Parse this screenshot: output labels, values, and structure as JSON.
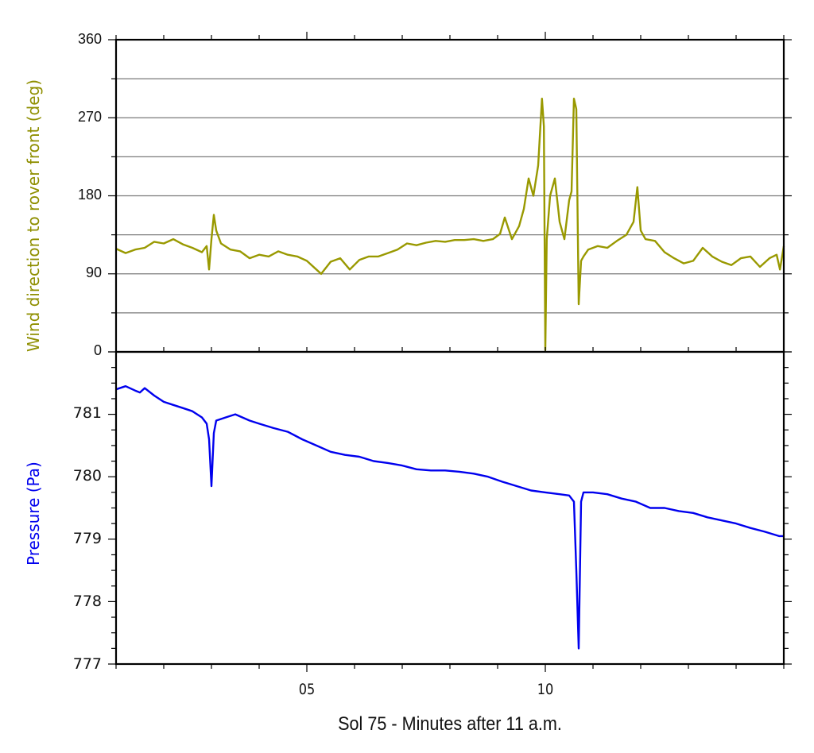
{
  "chart_data": [
    {
      "type": "line",
      "panel": "top",
      "title": "",
      "xlabel": "Sol 75 - Minutes after 11 a.m.",
      "ylabel": "Wind direction to rover front (deg)",
      "ylabel_color": "#8f8f00",
      "line_color": "#999900",
      "xlim": [
        1,
        15
      ],
      "ylim": [
        0,
        360
      ],
      "yticks": [
        0,
        90,
        180,
        270,
        360
      ],
      "ytick_labels": [
        "0",
        "90",
        "180",
        "270",
        "360"
      ],
      "gridlines_y": [
        45,
        90,
        135,
        180,
        225,
        270,
        315
      ],
      "grid": true,
      "series": [
        {
          "name": "Wind direction",
          "x": [
            1.0,
            1.2,
            1.4,
            1.6,
            1.8,
            2.0,
            2.2,
            2.4,
            2.6,
            2.8,
            2.9,
            2.95,
            3.0,
            3.05,
            3.1,
            3.2,
            3.4,
            3.6,
            3.8,
            4.0,
            4.2,
            4.4,
            4.6,
            4.8,
            5.0,
            5.2,
            5.3,
            5.5,
            5.7,
            5.9,
            6.1,
            6.3,
            6.5,
            6.7,
            6.9,
            7.1,
            7.3,
            7.5,
            7.7,
            7.9,
            8.1,
            8.3,
            8.5,
            8.7,
            8.9,
            9.05,
            9.15,
            9.3,
            9.45,
            9.55,
            9.65,
            9.75,
            9.85,
            9.93,
            9.97,
            10.0,
            10.03,
            10.1,
            10.2,
            10.3,
            10.4,
            10.5,
            10.55,
            10.6,
            10.65,
            10.7,
            10.75,
            10.8,
            10.9,
            11.1,
            11.3,
            11.5,
            11.7,
            11.85,
            11.93,
            12.0,
            12.1,
            12.3,
            12.5,
            12.7,
            12.9,
            13.1,
            13.3,
            13.5,
            13.7,
            13.9,
            14.1,
            14.3,
            14.5,
            14.7,
            14.85,
            14.92,
            15.0
          ],
          "values": [
            119,
            114,
            118,
            120,
            127,
            125,
            130,
            124,
            120,
            115,
            122,
            95,
            130,
            158,
            140,
            125,
            118,
            116,
            108,
            112,
            110,
            116,
            112,
            110,
            105,
            95,
            90,
            104,
            108,
            95,
            106,
            110,
            110,
            114,
            118,
            125,
            123,
            126,
            128,
            127,
            129,
            129,
            130,
            128,
            130,
            136,
            155,
            130,
            145,
            165,
            200,
            180,
            215,
            292,
            260,
            2,
            130,
            180,
            200,
            150,
            130,
            175,
            185,
            292,
            280,
            55,
            105,
            110,
            118,
            122,
            120,
            128,
            135,
            150,
            190,
            140,
            130,
            128,
            115,
            108,
            102,
            105,
            120,
            110,
            104,
            100,
            108,
            110,
            98,
            108,
            112,
            95,
            122
          ]
        }
      ]
    },
    {
      "type": "line",
      "panel": "bottom",
      "title": "",
      "xlabel": "Sol 75 - Minutes after 11 a.m.",
      "ylabel": "Pressure (Pa)",
      "ylabel_color": "#0000ee",
      "line_color": "#0000ee",
      "xlim": [
        1,
        15
      ],
      "ylim": [
        777,
        782
      ],
      "yticks": [
        777,
        778,
        779,
        780,
        781
      ],
      "ytick_labels": [
        "777",
        "778",
        "779",
        "780",
        "781"
      ],
      "yminor_step": 0.25,
      "grid": false,
      "series": [
        {
          "name": "Pressure",
          "x": [
            1.0,
            1.2,
            1.4,
            1.5,
            1.6,
            1.8,
            2.0,
            2.2,
            2.4,
            2.6,
            2.8,
            2.9,
            2.95,
            3.0,
            3.05,
            3.1,
            3.3,
            3.5,
            3.8,
            4.0,
            4.3,
            4.6,
            4.9,
            5.2,
            5.5,
            5.8,
            6.1,
            6.4,
            6.7,
            7.0,
            7.3,
            7.6,
            7.9,
            8.2,
            8.5,
            8.8,
            9.1,
            9.4,
            9.7,
            10.0,
            10.3,
            10.5,
            10.6,
            10.65,
            10.7,
            10.75,
            10.8,
            11.0,
            11.3,
            11.6,
            11.9,
            12.2,
            12.5,
            12.8,
            13.1,
            13.4,
            13.7,
            14.0,
            14.3,
            14.6,
            14.9,
            15.0
          ],
          "values": [
            781.4,
            781.45,
            781.38,
            781.35,
            781.42,
            781.3,
            781.2,
            781.15,
            781.1,
            781.05,
            780.95,
            780.85,
            780.6,
            779.85,
            780.7,
            780.9,
            780.95,
            781.0,
            780.9,
            780.85,
            780.78,
            780.72,
            780.6,
            780.5,
            780.4,
            780.35,
            780.32,
            780.25,
            780.22,
            780.18,
            780.12,
            780.1,
            780.1,
            780.08,
            780.05,
            780.0,
            779.92,
            779.85,
            779.78,
            779.75,
            779.72,
            779.7,
            779.6,
            778.5,
            777.25,
            779.6,
            779.75,
            779.75,
            779.72,
            779.65,
            779.6,
            779.5,
            779.5,
            779.45,
            779.42,
            779.35,
            779.3,
            779.25,
            779.18,
            779.12,
            779.05,
            779.05
          ]
        }
      ]
    }
  ],
  "x_axis": {
    "title": "Sol 75 - Minutes after 11 a.m.",
    "major_ticks": [
      5,
      10
    ],
    "major_tick_labels": [
      "05",
      "10"
    ],
    "minor_step": 1,
    "range": [
      1,
      15
    ]
  },
  "top_panel": {
    "ylabel": "Wind direction to rover front (deg)",
    "ytick_labels": [
      "360",
      "270",
      "180",
      "90",
      "0"
    ]
  },
  "bottom_panel": {
    "ylabel": "Pressure (Pa)",
    "ytick_labels": [
      "781",
      "780",
      "779",
      "778",
      "777"
    ]
  }
}
